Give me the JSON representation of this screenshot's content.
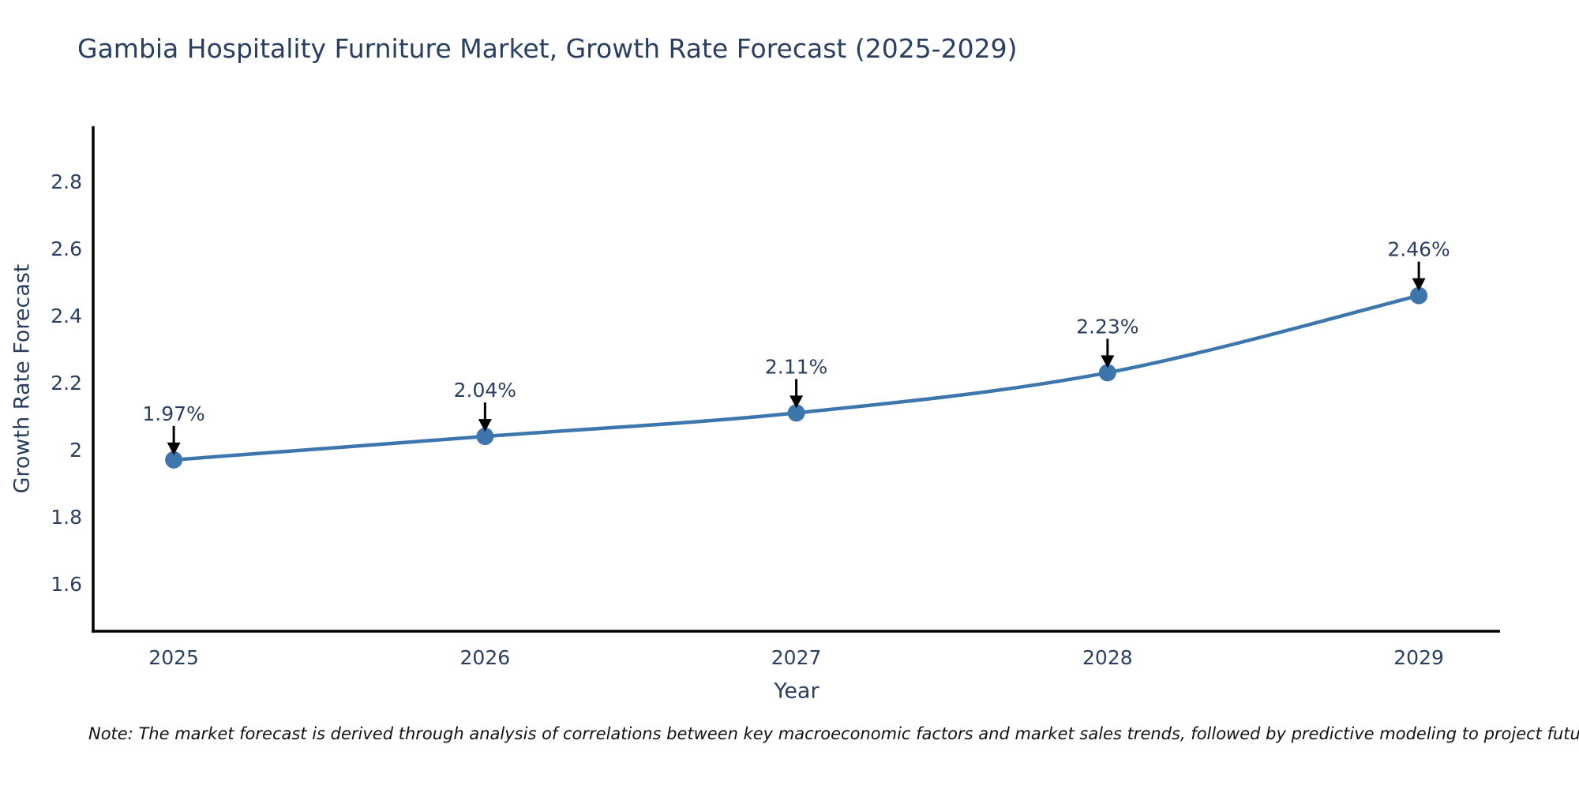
{
  "title": "Gambia Hospitality Furniture Market, Growth Rate Forecast (2025-2029)",
  "footnote": "Note: The market forecast is derived through analysis of correlations between key macroeconomic factors and market sales trends, followed by predictive modeling to project future sales",
  "chart_data": {
    "type": "line",
    "title": "Gambia Hospitality Furniture Market, Growth Rate Forecast (2025-2029)",
    "xlabel": "Year",
    "ylabel": "Growth Rate Forecast",
    "categories": [
      2025,
      2026,
      2027,
      2028,
      2029
    ],
    "series": [
      {
        "name": "Growth Rate Forecast",
        "values": [
          1.97,
          2.04,
          2.11,
          2.23,
          2.46
        ]
      }
    ],
    "annotations": [
      "1.97%",
      "2.04%",
      "2.11%",
      "2.23%",
      "2.46%"
    ],
    "yticks": [
      1.6,
      1.8,
      2,
      2.2,
      2.4,
      2.6,
      2.8
    ],
    "ylim": [
      1.459,
      2.965
    ],
    "xlim": [
      2024.741,
      2029.261
    ],
    "grid": false,
    "legend": "none",
    "line_color": "#3d76ad",
    "marker_color": "#3d76ad",
    "annotation_arrow_color": "#000000",
    "axis_line_color": "#000000",
    "text_color": "#2a3f5f"
  }
}
